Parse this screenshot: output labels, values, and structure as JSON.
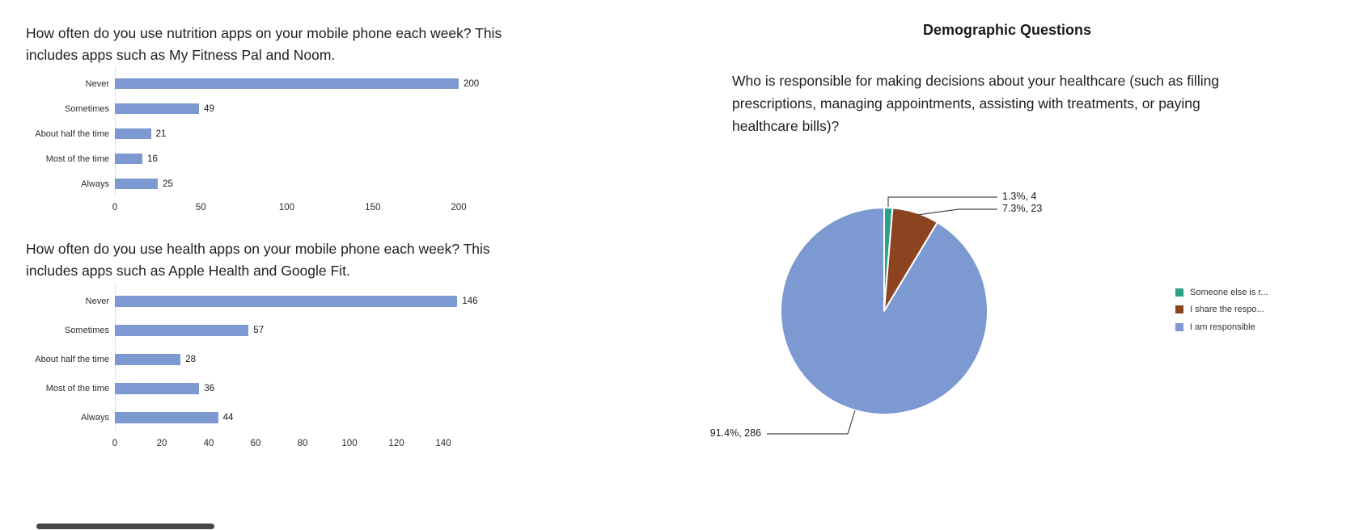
{
  "chart_data": [
    {
      "type": "bar",
      "orientation": "horizontal",
      "title": "How often do you use nutrition apps on your mobile phone each week? This includes apps such as My Fitness Pal and Noom.",
      "categories": [
        "Never",
        "Sometimes",
        "About half the time",
        "Most of the time",
        "Always"
      ],
      "values": [
        200,
        49,
        21,
        16,
        25
      ],
      "xlim": [
        0,
        200
      ],
      "xticks": [
        0,
        50,
        100,
        150,
        200
      ],
      "bar_color": "#7C9AD1",
      "grid": false,
      "legend": "none"
    },
    {
      "type": "bar",
      "orientation": "horizontal",
      "title": "How often do you use health apps on your mobile phone each week? This includes apps such as Apple Health and Google Fit.",
      "categories": [
        "Never",
        "Sometimes",
        "About half the time",
        "Most of the time",
        "Always"
      ],
      "values": [
        146,
        57,
        28,
        36,
        44
      ],
      "xlim": [
        0,
        150
      ],
      "xticks": [
        0,
        20,
        40,
        60,
        80,
        100,
        120,
        140
      ],
      "bar_color": "#7C9AD1",
      "grid": false,
      "legend": "none"
    },
    {
      "type": "pie",
      "section_title": "Demographic Questions",
      "title": "Who is responsible for making decisions about your healthcare (such as filling prescriptions, managing appointments, assisting with treatments, or paying healthcare bills)?",
      "slices": [
        {
          "label": "Someone else is r...",
          "percent": 1.3,
          "count": 4,
          "color": "#2AA189",
          "callout": "1.3%, 4"
        },
        {
          "label": "I share the respo...",
          "percent": 7.3,
          "count": 23,
          "color": "#8C431F",
          "callout": "7.3%, 23"
        },
        {
          "label": "I am responsible",
          "percent": 91.4,
          "count": 286,
          "color": "#7C9AD1",
          "callout": "91.4%, 286"
        }
      ],
      "start_angle_deg": 0,
      "legend_position": "right"
    }
  ]
}
